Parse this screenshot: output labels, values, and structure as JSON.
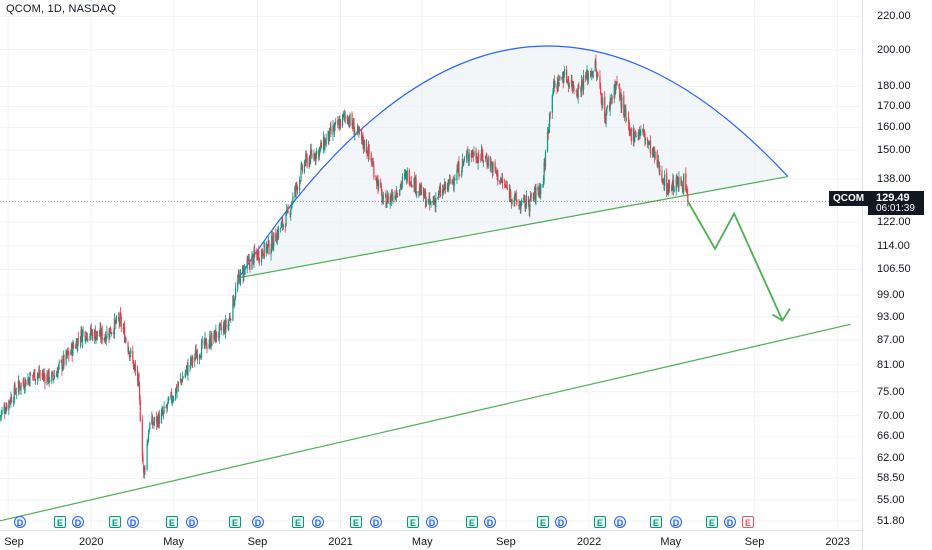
{
  "header": {
    "title": "QCOM, 1D, NASDAQ"
  },
  "price_marker": {
    "symbol": "QCOM",
    "price": "129.49",
    "countdown": "06:01:39"
  },
  "colors": {
    "up": "#089981",
    "down": "#f23645",
    "arc": "#2962ff",
    "trendline": "#4caf50",
    "fill": "#e8eef3",
    "arrow": "#4caf50"
  },
  "chart_data": {
    "type": "candlestick",
    "symbol": "QCOM",
    "interval": "1D",
    "exchange": "NASDAQ",
    "y_scale": "log",
    "ylim": [
      50.6,
      226
    ],
    "y_ticks": [
      "220.00",
      "200.00",
      "180.00",
      "170.00",
      "160.00",
      "150.00",
      "138.00",
      "122.00",
      "114.00",
      "106.50",
      "99.00",
      "93.00",
      "87.00",
      "81.00",
      "75.00",
      "70.00",
      "66.00",
      "62.00",
      "58.50",
      "55.00",
      "51.80"
    ],
    "x_ticks": [
      "Sep",
      "2020",
      "May",
      "Sep",
      "2021",
      "May",
      "Sep",
      "2022",
      "May",
      "Sep",
      "2023"
    ],
    "x_tick_dates": [
      "2019-09-01",
      "2020-01-01",
      "2020-05-01",
      "2020-09-01",
      "2021-01-01",
      "2021-05-01",
      "2021-09-01",
      "2022-01-01",
      "2022-05-01",
      "2022-09-01",
      "2023-01-01"
    ],
    "price_path": [
      [
        "2019-08-20",
        70
      ],
      [
        "2019-09-15",
        76
      ],
      [
        "2019-10-10",
        79
      ],
      [
        "2019-11-05",
        78
      ],
      [
        "2019-12-01",
        84
      ],
      [
        "2019-12-20",
        89
      ],
      [
        "2020-01-20",
        88
      ],
      [
        "2020-02-12",
        92
      ],
      [
        "2020-02-25",
        85
      ],
      [
        "2020-03-10",
        77
      ],
      [
        "2020-03-18",
        58.8
      ],
      [
        "2020-03-26",
        68
      ],
      [
        "2020-04-15",
        70
      ],
      [
        "2020-05-10",
        77
      ],
      [
        "2020-06-05",
        84
      ],
      [
        "2020-06-25",
        87
      ],
      [
        "2020-07-20",
        91
      ],
      [
        "2020-08-05",
        104
      ],
      [
        "2020-08-25",
        110
      ],
      [
        "2020-09-20",
        114
      ],
      [
        "2020-10-15",
        124
      ],
      [
        "2020-11-10",
        145
      ],
      [
        "2020-12-01",
        150
      ],
      [
        "2020-12-20",
        158
      ],
      [
        "2021-01-10",
        166
      ],
      [
        "2021-01-20",
        160
      ],
      [
        "2021-02-10",
        150
      ],
      [
        "2021-03-05",
        129
      ],
      [
        "2021-03-20",
        132
      ],
      [
        "2021-04-10",
        140
      ],
      [
        "2021-05-12",
        128
      ],
      [
        "2021-06-10",
        136
      ],
      [
        "2021-07-10",
        149
      ],
      [
        "2021-08-05",
        146
      ],
      [
        "2021-08-25",
        137
      ],
      [
        "2021-09-20",
        128
      ],
      [
        "2021-10-05",
        129
      ],
      [
        "2021-10-25",
        136
      ],
      [
        "2021-11-08",
        178
      ],
      [
        "2021-11-25",
        186
      ],
      [
        "2021-12-15",
        178
      ],
      [
        "2021-12-30",
        186
      ],
      [
        "2022-01-10",
        190
      ],
      [
        "2022-01-25",
        165
      ],
      [
        "2022-02-10",
        182
      ],
      [
        "2022-03-01",
        157
      ],
      [
        "2022-03-20",
        158
      ],
      [
        "2022-04-10",
        145
      ],
      [
        "2022-04-25",
        135
      ],
      [
        "2022-05-10",
        136
      ],
      [
        "2022-05-20",
        137
      ],
      [
        "2022-05-26",
        129.49
      ]
    ],
    "drawings": {
      "arc": {
        "start": [
          "2020-08-05",
          104
        ],
        "peak": [
          "2021-09-05",
          200
        ],
        "end": [
          "2022-10-20",
          139
        ]
      },
      "neckline": {
        "start": [
          "2020-08-05",
          104
        ],
        "end": [
          "2022-10-20",
          139
        ]
      },
      "support": {
        "start": [
          "2019-08-20",
          51.8
        ],
        "end": [
          "2023-01-20",
          91
        ]
      },
      "projection": [
        [
          "2022-05-26",
          129.49
        ],
        [
          "2022-07-05",
          113
        ],
        [
          "2022-08-02",
          125
        ],
        [
          "2022-10-12",
          92
        ],
        [
          "2022-10-20",
          93
        ]
      ]
    },
    "last_price": 129.49
  },
  "events": [
    {
      "type": "D"
    },
    {
      "type": "E"
    },
    {
      "type": "D"
    },
    {
      "type": "E"
    },
    {
      "type": "D"
    },
    {
      "type": "E"
    },
    {
      "type": "D"
    },
    {
      "type": "E"
    },
    {
      "type": "D"
    },
    {
      "type": "E"
    },
    {
      "type": "D"
    },
    {
      "type": "E"
    },
    {
      "type": "D"
    },
    {
      "type": "E"
    },
    {
      "type": "D"
    },
    {
      "type": "E"
    },
    {
      "type": "D"
    },
    {
      "type": "E"
    },
    {
      "type": "D"
    },
    {
      "type": "E"
    },
    {
      "type": "D"
    },
    {
      "type": "E"
    },
    {
      "type": "D"
    },
    {
      "type": "E"
    },
    {
      "type": "D"
    },
    {
      "type": "E-future"
    }
  ]
}
